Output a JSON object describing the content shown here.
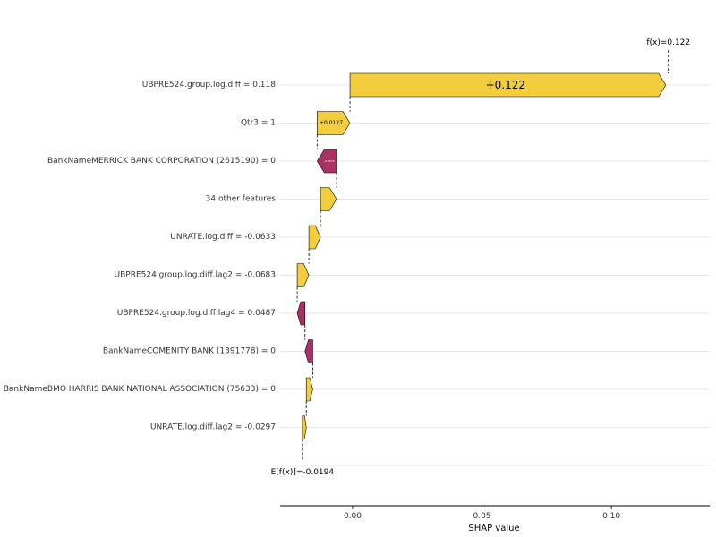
{
  "chart_data": {
    "type": "waterfall",
    "xlabel": "SHAP value",
    "xlim": [
      -0.028,
      0.138
    ],
    "xticks": [
      0.0,
      0.05,
      0.1
    ],
    "xtick_labels": [
      "0.00",
      "0.05",
      "0.10"
    ],
    "grid": "horizontal",
    "base_value": -0.0194,
    "base_label": "E[f(x)]=-0.0194",
    "final_value": 0.122,
    "final_label": "f(x)=0.122",
    "colors": {
      "positive": "#F4CD3E",
      "negative": "#A83263",
      "outline": "#000000"
    },
    "features": [
      {
        "label": "UBPRE524.group.log.diff = 0.118",
        "shap": 0.122,
        "value_label": "+0.122"
      },
      {
        "label": "Qtr3 = 1",
        "shap": 0.0127,
        "value_label": "+0.0127"
      },
      {
        "label": "BankNameMERRICK BANK CORPORATION (2615190) = 0",
        "shap": -0.0075,
        "value_label": "-0.0075"
      },
      {
        "label": "34 other features",
        "shap": 0.0062,
        "value_label": ""
      },
      {
        "label": "UNRATE.log.diff = -0.0633",
        "shap": 0.0045,
        "value_label": ""
      },
      {
        "label": "UBPRE524.group.log.diff.lag2 = -0.0683",
        "shap": 0.0045,
        "value_label": ""
      },
      {
        "label": "UBPRE524.group.log.diff.lag4 = 0.0487",
        "shap": -0.003,
        "value_label": ""
      },
      {
        "label": "BankNameCOMENITY BANK (1391778) = 0",
        "shap": -0.003,
        "value_label": ""
      },
      {
        "label": "BankNameBMO HARRIS BANK NATIONAL ASSOCIATION (75633) = 0",
        "shap": 0.0025,
        "value_label": ""
      },
      {
        "label": "UNRATE.log.diff.lag2 = -0.0297",
        "shap": 0.0015,
        "value_label": ""
      }
    ]
  }
}
